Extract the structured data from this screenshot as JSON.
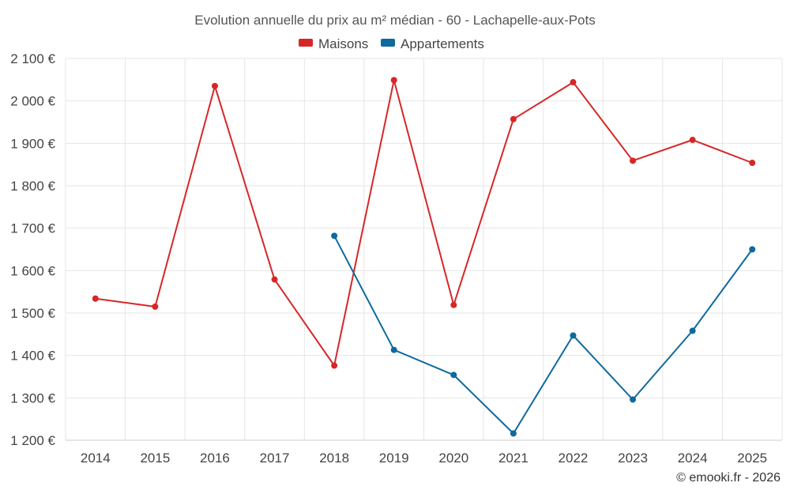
{
  "chart_data": {
    "type": "line",
    "title": "Evolution annuelle du prix au m² médian - 60 - Lachapelle-aux-Pots",
    "x": [
      "2014",
      "2015",
      "2016",
      "2017",
      "2018",
      "2019",
      "2020",
      "2021",
      "2022",
      "2023",
      "2024",
      "2025"
    ],
    "series": [
      {
        "name": "Maisons",
        "color": "#d62728",
        "values": [
          1534,
          1515,
          2035,
          1579,
          1376,
          2049,
          1519,
          1957,
          2044,
          1859,
          1908,
          1854
        ]
      },
      {
        "name": "Appartements",
        "color": "#0d6a9e",
        "values": [
          null,
          null,
          null,
          null,
          1682,
          1413,
          1354,
          1216,
          1447,
          1296,
          1458,
          1650
        ]
      }
    ],
    "ylim": [
      1200,
      2100
    ],
    "yticks": [
      1200,
      1300,
      1400,
      1500,
      1600,
      1700,
      1800,
      1900,
      2000,
      2100
    ],
    "ytick_labels": [
      "1 200 €",
      "1 300 €",
      "1 400 €",
      "1 500 €",
      "1 600 €",
      "1 700 €",
      "1 800 €",
      "1 900 €",
      "2 000 €",
      "2 100 €"
    ],
    "legend_position": "top-center",
    "grid": true
  },
  "credit": "© emooki.fr - 2026"
}
